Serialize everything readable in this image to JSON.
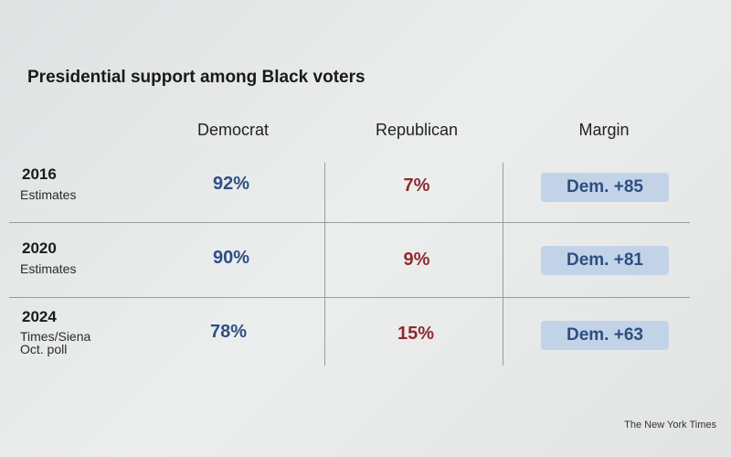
{
  "title": "Presidential support among Black voters",
  "table": {
    "columns": [
      "Democrat",
      "Republican",
      "Margin"
    ],
    "rows": [
      {
        "year": "2016",
        "label": "Estimates",
        "cells": [
          "92%",
          "7%",
          "Dem. +85"
        ]
      },
      {
        "year": "2020",
        "label": "Estimates",
        "cells": [
          "90%",
          "9%",
          "Dem. +81"
        ]
      },
      {
        "year": "2024",
        "label": "Times/Siena Oct. poll",
        "cells": [
          "78%",
          "15%",
          "Dem. +63"
        ]
      }
    ]
  },
  "source": "The New York Times"
}
